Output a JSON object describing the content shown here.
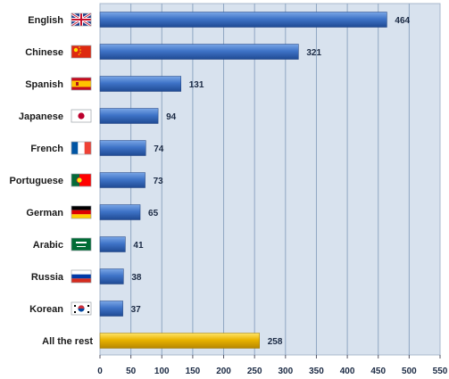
{
  "chart_data": {
    "type": "bar",
    "orientation": "horizontal",
    "categories": [
      "English",
      "Chinese",
      "Spanish",
      "Japanese",
      "French",
      "Portuguese",
      "German",
      "Arabic",
      "Russia",
      "Korean",
      "All the rest"
    ],
    "values": [
      464,
      321,
      131,
      94,
      74,
      73,
      65,
      41,
      38,
      37,
      258
    ],
    "title": "",
    "xlabel": "",
    "ylabel": "",
    "xlim": [
      0,
      550
    ],
    "xticks": [
      "0",
      "50",
      "100",
      "150",
      "200",
      "250",
      "300",
      "350",
      "400",
      "450",
      "500",
      "550"
    ],
    "grid": true,
    "legend": "none",
    "icons": [
      "uk-flag-icon",
      "china-flag-icon",
      "spain-flag-icon",
      "japan-flag-icon",
      "france-flag-icon",
      "portugal-flag-icon",
      "germany-flag-icon",
      "saudi-arabia-flag-icon",
      "russia-flag-icon",
      "south-korea-flag-icon",
      null
    ]
  },
  "colors": {
    "plot_background": "#d8e2ee",
    "grid": "#8fa6c2",
    "bar": "#3a6fc4",
    "bar_highlight": "#e8b400"
  }
}
